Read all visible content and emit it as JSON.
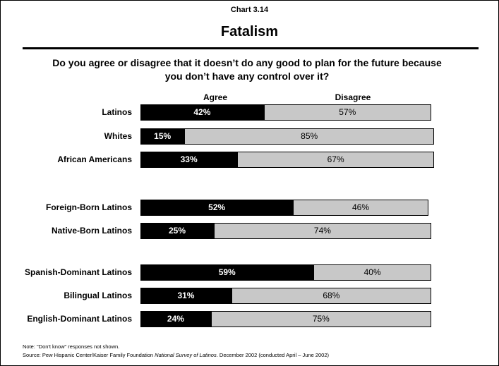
{
  "header": {
    "chart_label": "Chart 3.14",
    "title": "Fatalism",
    "question": "Do you agree or disagree that it doesn’t do any good to plan for the future because you don’t have any control over it?"
  },
  "legend": {
    "agree": "Agree",
    "disagree": "Disagree"
  },
  "chart_data": {
    "type": "bar",
    "orientation": "horizontal",
    "stacked": true,
    "title": "Fatalism",
    "categories": [
      "Latinos",
      "Whites",
      "African Americans",
      "Foreign-Born Latinos",
      "Native-Born Latinos",
      "Spanish-Dominant Latinos",
      "Bilingual Latinos",
      "English-Dominant Latinos"
    ],
    "groups": [
      [
        "Latinos",
        "Whites",
        "African Americans"
      ],
      [
        "Foreign-Born Latinos",
        "Native-Born Latinos"
      ],
      [
        "Spanish-Dominant Latinos",
        "Bilingual Latinos",
        "English-Dominant Latinos"
      ]
    ],
    "series": [
      {
        "name": "Agree",
        "values": [
          42,
          15,
          33,
          52,
          25,
          59,
          31,
          24
        ],
        "labels": [
          "42%",
          "15%",
          "33%",
          "52%",
          "25%",
          "59%",
          "31%",
          "24%"
        ],
        "color": "#000000"
      },
      {
        "name": "Disagree",
        "values": [
          57,
          85,
          67,
          46,
          74,
          40,
          68,
          75
        ],
        "labels": [
          "57%",
          "85%",
          "67%",
          "46%",
          "74%",
          "40%",
          "68%",
          "75%"
        ],
        "color": "#c8c8c8"
      }
    ],
    "xlim": [
      0,
      100
    ],
    "grid": false,
    "legend_position": "top"
  },
  "footer": {
    "note": "Note: \"Don't know\" responses not shown.",
    "source_prefix": "Source: Pew Hispanic Center/Kaiser Family Foundation ",
    "source_title": "National Survey of Latinos",
    "source_suffix": ". December 2002 (conducted April – June 2002)"
  }
}
